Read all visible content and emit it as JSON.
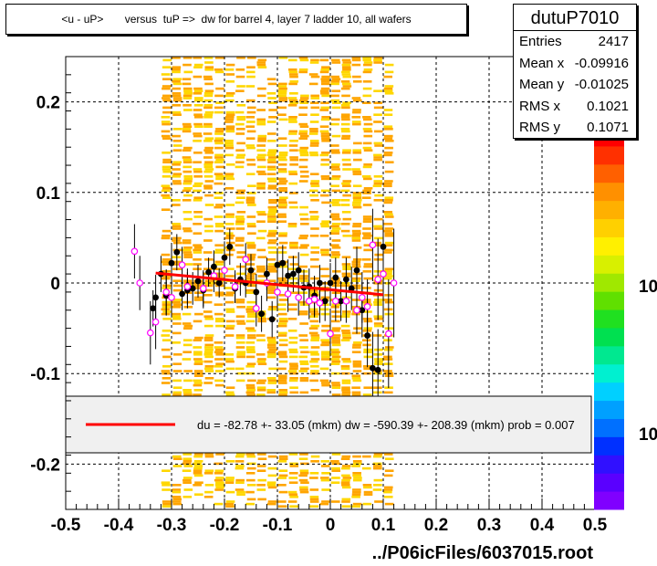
{
  "title": "<u - uP>       versus  tuP =>  dw for barrel 4, layer 7 ladder 10, all wafers",
  "stats": {
    "name": "dutuP7010",
    "rows": [
      {
        "key": "Entries",
        "value": "2417"
      },
      {
        "key": "Mean x",
        "value": "-0.09916"
      },
      {
        "key": "Mean y",
        "value": "-0.01025"
      },
      {
        "key": "RMS x",
        "value": "0.1021"
      },
      {
        "key": "RMS y",
        "value": "0.1071"
      }
    ]
  },
  "fit_legend": "du =  -82.78 +- 33.05 (mkm) dw = -590.39 +- 208.39 (mkm) prob = 0.007",
  "footer": "../P06icFiles/6037015.root",
  "colorbar_labels": [
    "10",
    "10"
  ],
  "colors": {
    "hist_orange": "#ffa500",
    "hist_yellow": "#ffd700",
    "black_points": "#000000",
    "magenta_points": "#ff00ff",
    "fit_line": "#ff0000"
  },
  "chart_data": {
    "type": "scatter",
    "xlim": [
      -0.5,
      0.5
    ],
    "ylim": [
      -0.25,
      0.25
    ],
    "x_ticks": [
      "-0.5",
      "-0.4",
      "-0.3",
      "-0.2",
      "-0.1",
      "0",
      "0.1",
      "0.2",
      "0.3",
      "0.4",
      "0.5"
    ],
    "y_ticks": [
      "-0.2",
      "-0.1",
      "0",
      "0.1",
      "0.2"
    ],
    "grid": true,
    "fit_line": {
      "x": [
        -0.33,
        0.1
      ],
      "y": [
        0.011,
        -0.013
      ]
    },
    "series": [
      {
        "marker": "black-filled-circle",
        "x": [
          -0.335,
          -0.33,
          -0.32,
          -0.31,
          -0.3,
          -0.29,
          -0.28,
          -0.27,
          -0.26,
          -0.25,
          -0.24,
          -0.23,
          -0.22,
          -0.21,
          -0.2,
          -0.19,
          -0.18,
          -0.17,
          -0.16,
          -0.15,
          -0.14,
          -0.13,
          -0.12,
          -0.11,
          -0.1,
          -0.09,
          -0.08,
          -0.07,
          -0.06,
          -0.05,
          -0.04,
          -0.03,
          -0.02,
          -0.01,
          0.0,
          0.01,
          0.02,
          0.03,
          0.04,
          0.05,
          0.06,
          0.07,
          0.08,
          0.09,
          0.1
        ],
        "y": [
          -0.028,
          -0.016,
          0.01,
          -0.014,
          0.022,
          0.034,
          -0.012,
          -0.008,
          -0.006,
          0.002,
          -0.008,
          0.012,
          0.018,
          0.0,
          0.028,
          0.04,
          -0.006,
          0.004,
          0.0,
          0.014,
          -0.01,
          -0.034,
          0.01,
          -0.04,
          0.02,
          0.022,
          0.008,
          0.01,
          0.014,
          -0.005,
          -0.004,
          -0.014,
          0.0,
          -0.02,
          0.0,
          0.006,
          -0.02,
          0.004,
          -0.006,
          0.014,
          -0.03,
          -0.058,
          -0.094,
          -0.096,
          0.04
        ],
        "yerr": [
          0.02,
          0.025,
          0.02,
          0.022,
          0.02,
          0.02,
          0.018,
          0.02,
          0.018,
          0.018,
          0.02,
          0.016,
          0.018,
          0.016,
          0.018,
          0.02,
          0.016,
          0.018,
          0.016,
          0.018,
          0.02,
          0.02,
          0.018,
          0.02,
          0.018,
          0.02,
          0.018,
          0.02,
          0.02,
          0.02,
          0.02,
          0.022,
          0.02,
          0.022,
          0.022,
          0.022,
          0.022,
          0.024,
          0.024,
          0.026,
          0.03,
          0.035,
          0.04,
          0.045,
          0.03
        ]
      },
      {
        "marker": "magenta-open-circle",
        "x": [
          -0.37,
          -0.36,
          -0.34,
          -0.33,
          -0.31,
          -0.3,
          -0.28,
          -0.27,
          -0.24,
          -0.22,
          -0.2,
          -0.18,
          -0.16,
          -0.14,
          -0.12,
          -0.1,
          -0.08,
          -0.06,
          -0.04,
          -0.03,
          -0.02,
          0.0,
          0.01,
          0.03,
          0.05,
          0.06,
          0.07,
          0.08,
          0.09,
          0.1,
          0.11,
          0.12
        ],
        "y": [
          0.035,
          0.0,
          -0.055,
          -0.043,
          -0.01,
          -0.016,
          0.02,
          -0.004,
          -0.006,
          0.008,
          0.014,
          -0.004,
          0.026,
          -0.028,
          0.0,
          -0.01,
          -0.012,
          -0.016,
          -0.02,
          -0.018,
          -0.022,
          -0.056,
          -0.02,
          -0.02,
          -0.03,
          -0.016,
          -0.026,
          0.042,
          0.004,
          0.01,
          -0.056,
          0.0
        ],
        "yerr": [
          0.03,
          0.03,
          0.035,
          0.03,
          0.025,
          0.022,
          0.02,
          0.02,
          0.02,
          0.018,
          0.018,
          0.018,
          0.018,
          0.02,
          0.02,
          0.02,
          0.02,
          0.02,
          0.02,
          0.02,
          0.022,
          0.025,
          0.022,
          0.024,
          0.026,
          0.028,
          0.03,
          0.04,
          0.045,
          0.05,
          0.06,
          0.06
        ]
      }
    ]
  }
}
